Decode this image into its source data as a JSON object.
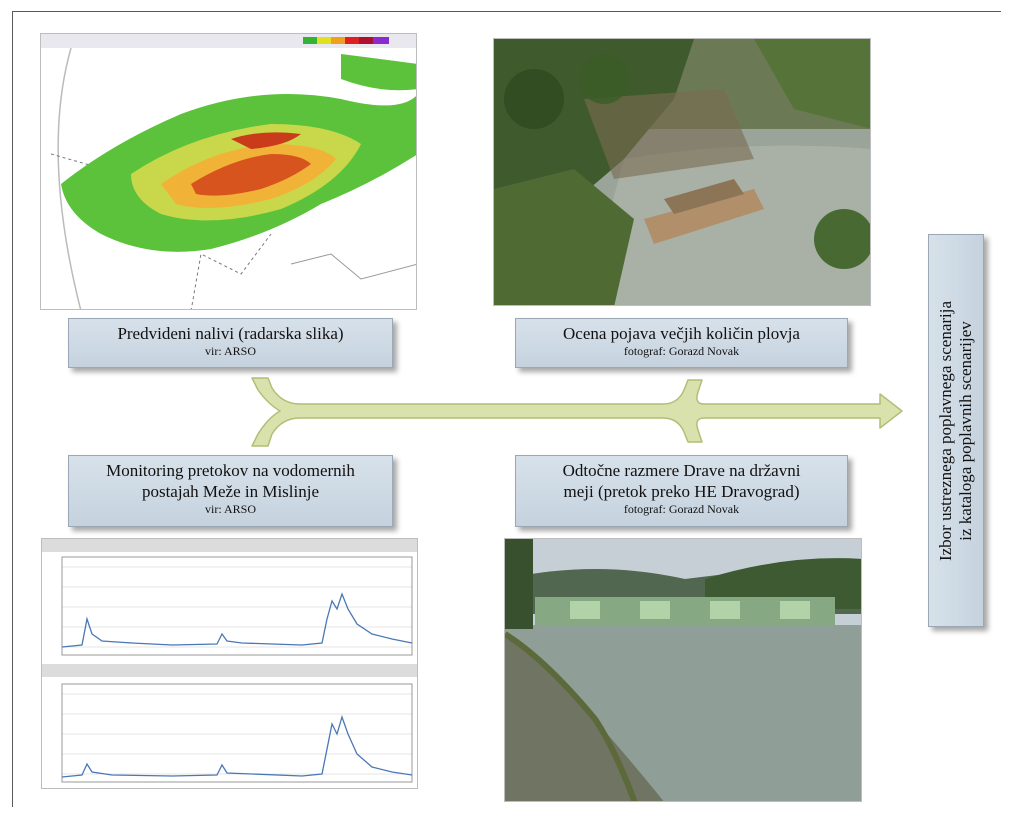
{
  "panels": {
    "radar": {
      "title": "Predvideni nalivi (radarska slika)",
      "credit": "vir: ARSO"
    },
    "debris": {
      "title": "Ocena pojava večjih količin plovja",
      "credit": "fotograf: Gorazd Novak"
    },
    "monitoring": {
      "title_line1": "Monitoring pretokov na vodomernih",
      "title_line2": "postajah Meže in Mislinje",
      "credit": "vir: ARSO"
    },
    "drava": {
      "title_line1": "Odtočne razmere Drave na državni",
      "title_line2": "meji (pretok preko HE Dravograd)",
      "credit": "fotograf: Gorazd Novak"
    }
  },
  "outcome": {
    "line1": "Izbor ustreznega poplavnega scenarija",
    "line2": "iz kataloga poplavnih scenarijev"
  },
  "colors": {
    "arrow_fill": "#d9e1ad",
    "arrow_stroke": "#b3bd77",
    "label_box": "#ccd8e3"
  }
}
